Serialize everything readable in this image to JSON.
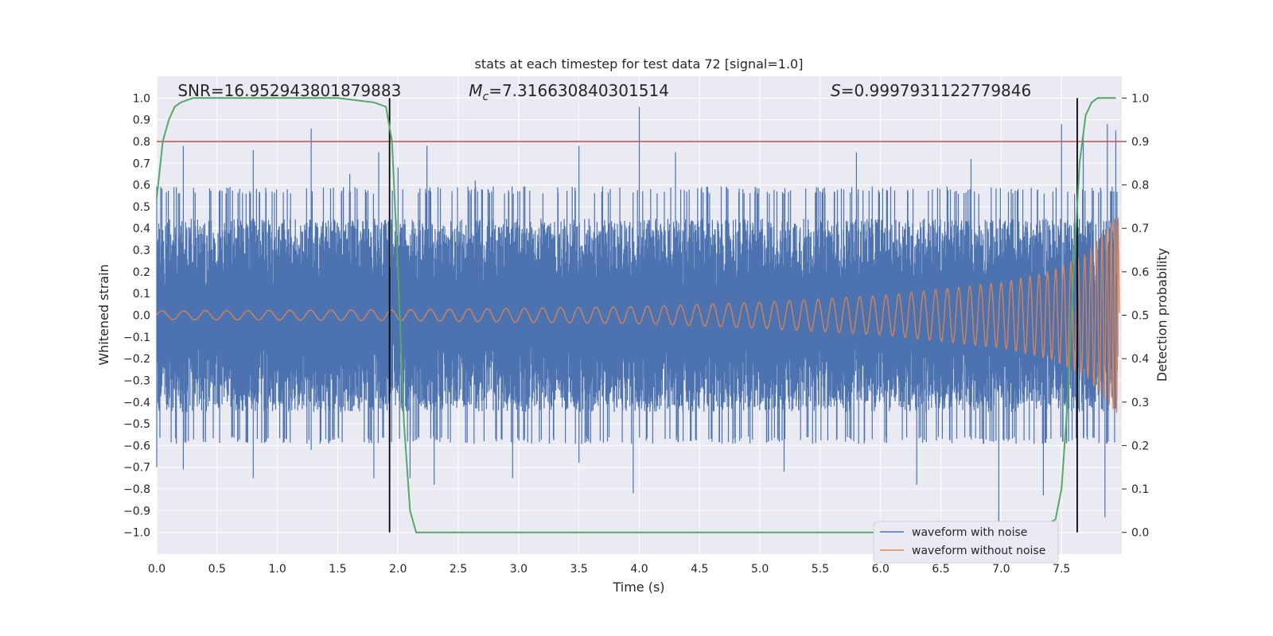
{
  "chart_data": {
    "type": "line",
    "title": "stats at each timestep for test data 72 [signal=1.0]",
    "xlabel": "Time (s)",
    "ylabel": "Whitened strain",
    "y2label": "Detection probability",
    "xlim": [
      0.0,
      8.0
    ],
    "ylim": [
      -1.1,
      1.1
    ],
    "y2lim": [
      -0.05,
      1.05
    ],
    "xticks": [
      0.0,
      0.5,
      1.0,
      1.5,
      2.0,
      2.5,
      3.0,
      3.5,
      4.0,
      4.5,
      5.0,
      5.5,
      6.0,
      6.5,
      7.0,
      7.5
    ],
    "xtick_labels": [
      "0.0",
      "0.5",
      "1.0",
      "1.5",
      "2.0",
      "2.5",
      "3.0",
      "3.5",
      "4.0",
      "4.5",
      "5.0",
      "5.5",
      "6.0",
      "6.5",
      "7.0",
      "7.5"
    ],
    "yticks": [
      1.0,
      0.9,
      0.8,
      0.7,
      0.6,
      0.5,
      0.4,
      0.3,
      0.2,
      0.1,
      0.0,
      -0.1,
      -0.2,
      -0.3,
      -0.4,
      -0.5,
      -0.6,
      -0.7,
      -0.8,
      -0.9,
      -1.0
    ],
    "ytick_labels": [
      "1.0",
      "0.9",
      "0.8",
      "0.7",
      "0.6",
      "0.5",
      "0.4",
      "0.3",
      "0.2",
      "0.1",
      "0.0",
      "−0.1",
      "−0.2",
      "−0.3",
      "−0.4",
      "−0.5",
      "−0.6",
      "−0.7",
      "−0.8",
      "−0.9",
      "−1.0"
    ],
    "y2ticks": [
      1.0,
      0.9,
      0.8,
      0.7,
      0.6,
      0.5,
      0.4,
      0.3,
      0.2,
      0.1,
      0.0
    ],
    "y2tick_labels": [
      "1.0",
      "0.9",
      "0.8",
      "0.7",
      "0.6",
      "0.5",
      "0.4",
      "0.3",
      "0.2",
      "0.1",
      "0.0"
    ],
    "grid": true,
    "legend_position": "bottom-right",
    "series": [
      {
        "name": "waveform with noise",
        "color": "#4c72b0",
        "axis": "left",
        "description_noise_amplitude": 0.35,
        "spikes": [
          [
            0.0,
            -0.7
          ],
          [
            0.22,
            0.78
          ],
          [
            0.22,
            -0.71
          ],
          [
            0.8,
            0.76
          ],
          [
            0.8,
            -0.75
          ],
          [
            1.28,
            0.86
          ],
          [
            1.28,
            -0.62
          ],
          [
            1.6,
            0.65
          ],
          [
            1.8,
            -0.75
          ],
          [
            1.84,
            0.75
          ],
          [
            2.0,
            0.68
          ],
          [
            2.1,
            -0.75
          ],
          [
            2.24,
            0.78
          ],
          [
            2.3,
            -0.78
          ],
          [
            2.64,
            0.62
          ],
          [
            2.95,
            -0.75
          ],
          [
            3.5,
            0.78
          ],
          [
            3.5,
            -0.68
          ],
          [
            4.0,
            0.96
          ],
          [
            3.95,
            -0.82
          ],
          [
            4.3,
            0.75
          ],
          [
            5.2,
            -0.72
          ],
          [
            5.8,
            0.75
          ],
          [
            6.3,
            -0.78
          ],
          [
            6.75,
            0.72
          ],
          [
            6.98,
            -0.98
          ],
          [
            7.35,
            -0.83
          ],
          [
            7.5,
            0.88
          ],
          [
            7.68,
            0.83
          ],
          [
            7.86,
            -0.93
          ],
          [
            7.88,
            0.88
          ],
          [
            7.95,
            0.85
          ]
        ]
      },
      {
        "name": "waveform without noise",
        "color": "#dd8452",
        "axis": "left",
        "description": "chirp: amplitude rises from about 0.02 at t=0 to about 0.45 near t=7.95, frequency increasing",
        "amplitude_points": [
          [
            0.0,
            0.02
          ],
          [
            2.0,
            0.025
          ],
          [
            4.0,
            0.04
          ],
          [
            5.0,
            0.06
          ],
          [
            6.0,
            0.09
          ],
          [
            6.5,
            0.12
          ],
          [
            7.0,
            0.15
          ],
          [
            7.4,
            0.2
          ],
          [
            7.7,
            0.28
          ],
          [
            7.85,
            0.38
          ],
          [
            7.95,
            0.45
          ]
        ]
      },
      {
        "color": "#55a868",
        "axis": "right",
        "x": [
          0.0,
          0.05,
          0.1,
          0.15,
          0.2,
          0.25,
          0.3,
          0.4,
          0.6,
          1.0,
          1.5,
          1.8,
          1.9,
          1.95,
          2.0,
          2.05,
          2.1,
          2.15,
          2.2,
          3.0,
          4.0,
          5.0,
          6.0,
          7.0,
          7.3,
          7.45,
          7.5,
          7.55,
          7.6,
          7.65,
          7.7,
          7.75,
          7.8,
          7.9,
          7.95
        ],
        "values": [
          0.77,
          0.9,
          0.95,
          0.98,
          0.99,
          0.995,
          1.0,
          1.0,
          1.0,
          1.0,
          1.0,
          0.99,
          0.98,
          0.9,
          0.6,
          0.25,
          0.05,
          0.0,
          0.0,
          0.0,
          0.0,
          0.0,
          0.0,
          0.0,
          0.005,
          0.03,
          0.1,
          0.3,
          0.6,
          0.85,
          0.96,
          0.99,
          1.0,
          1.0,
          1.0
        ]
      }
    ],
    "hlines": [
      {
        "y2": 0.9,
        "color": "#c44e52"
      }
    ],
    "vlines": [
      {
        "x": 1.93,
        "y2_from": 0.0,
        "y2_to": 1.0,
        "color": "#000000"
      },
      {
        "x": 7.63,
        "y2_from": 0.0,
        "y2_to": 1.0,
        "color": "#000000"
      }
    ],
    "annotations": [
      {
        "text": "SNR=16.952943801879883",
        "x": 0.2
      },
      {
        "text_symbol": "M",
        "text_sub": "c",
        "text_rest": "=7.316630840301514",
        "x": 2.6
      },
      {
        "text_symbol": "S",
        "text_rest": "=0.9997931122779846",
        "x": 5.6
      }
    ],
    "legend": [
      "waveform with noise",
      "waveform without noise"
    ]
  }
}
